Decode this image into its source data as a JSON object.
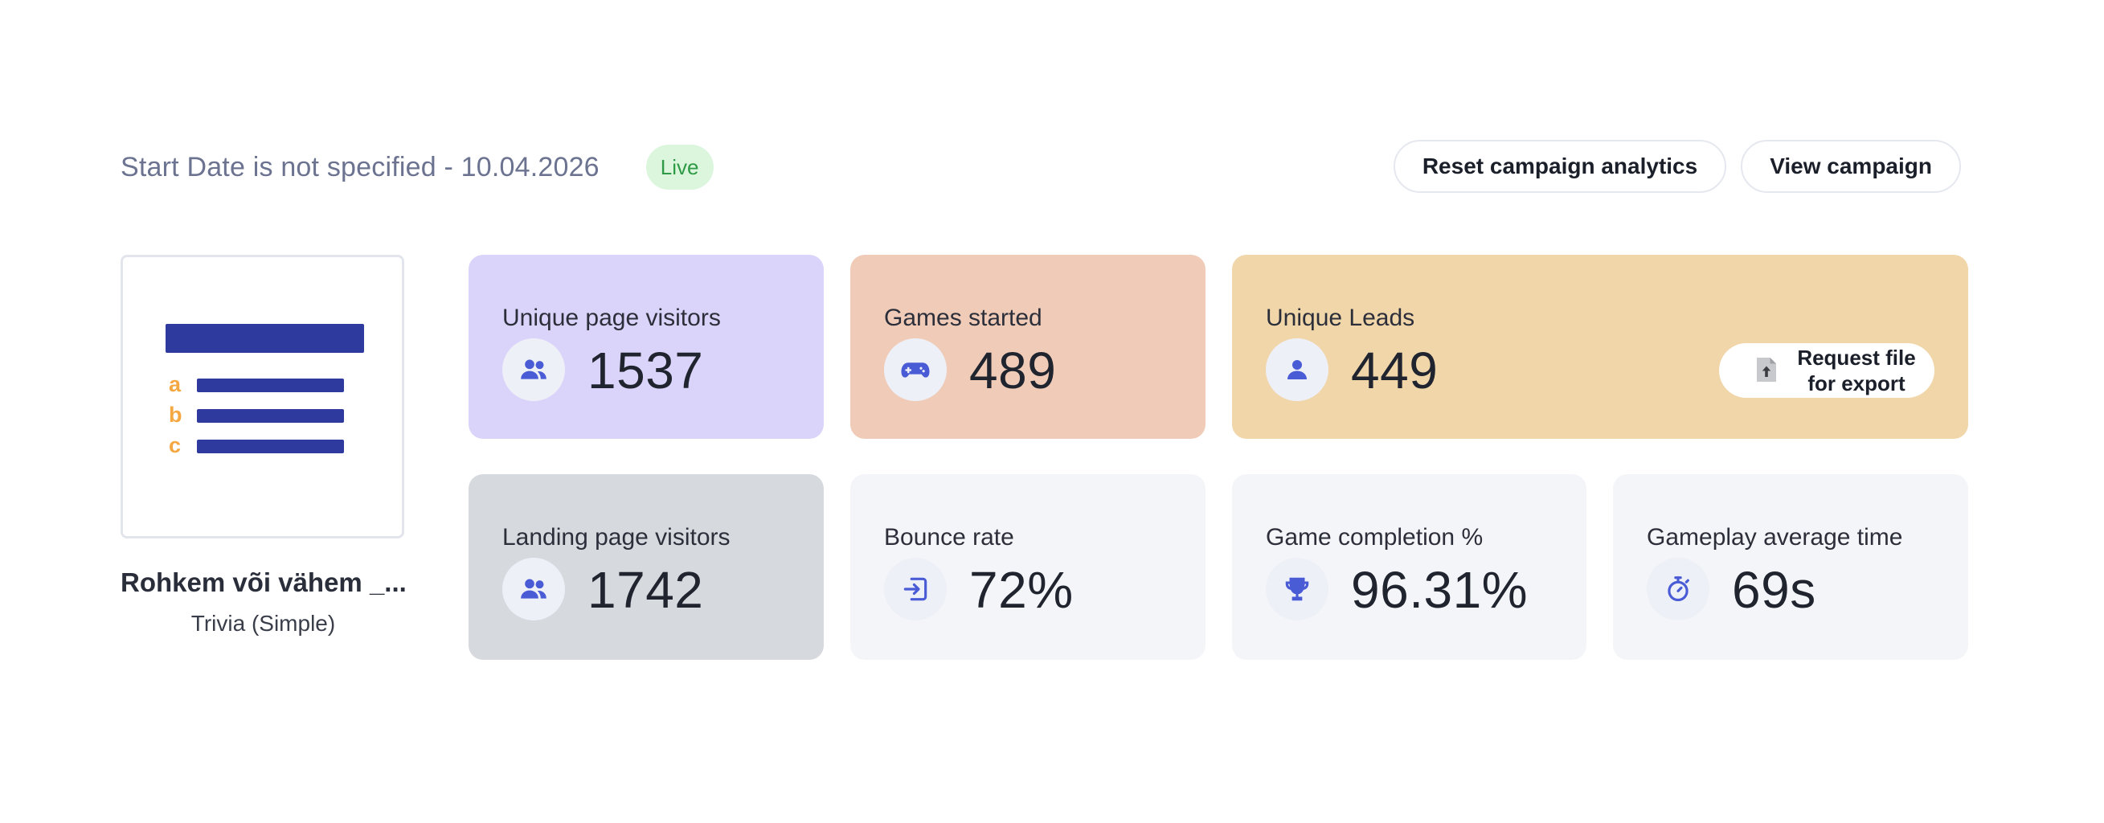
{
  "header": {
    "date_range": "Start Date is not specified - 10.04.2026",
    "status_badge": "Live",
    "reset_button": "Reset campaign analytics",
    "view_button": "View campaign"
  },
  "campaign": {
    "name": "Rohkem või vähem _...",
    "type": "Trivia (Simple)",
    "thumbnail_letters": [
      "a",
      "b",
      "c"
    ]
  },
  "stats": {
    "unique_page_visitors": {
      "label": "Unique page visitors",
      "value": "1537",
      "icon": "users-icon",
      "bg": "#dad3fa"
    },
    "games_started": {
      "label": "Games started",
      "value": "489",
      "icon": "gamepad-icon",
      "bg": "#f0ccb8"
    },
    "unique_leads": {
      "label": "Unique Leads",
      "value": "449",
      "icon": "user-icon",
      "bg": "#f0d6a9",
      "export_button": "Request file for export"
    },
    "landing_page_visitors": {
      "label": "Landing page visitors",
      "value": "1742",
      "icon": "users-icon",
      "bg": "#d6d9de"
    },
    "bounce_rate": {
      "label": "Bounce rate",
      "value": "72%",
      "icon": "sign-in-icon",
      "bg": "#f4f5f8"
    },
    "game_completion": {
      "label": "Game completion %",
      "value": "96.31%",
      "icon": "trophy-icon",
      "bg": "#f4f5f8"
    },
    "gameplay_average_time": {
      "label": "Gameplay average time",
      "value": "69s",
      "icon": "stopwatch-icon",
      "bg": "#f4f5f8"
    }
  },
  "colors": {
    "accent_icon": "#4a5bd6",
    "thumbnail_bars": "#2e3a9e",
    "thumbnail_letters": "#f5a742",
    "live_badge_bg": "#dcf6de",
    "live_badge_text": "#2f9a45"
  }
}
